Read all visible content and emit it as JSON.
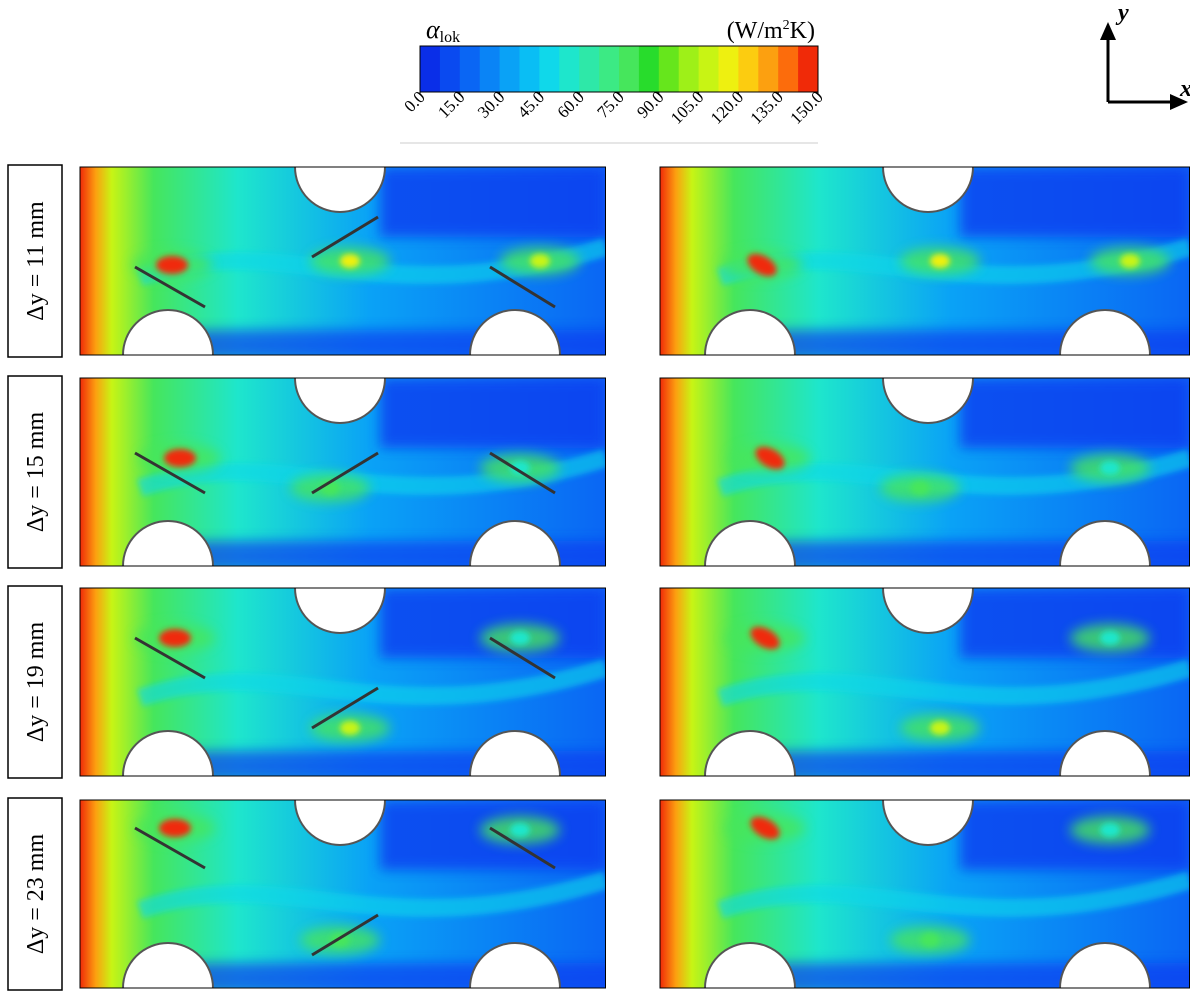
{
  "colorbar": {
    "symbol": "α",
    "symbol_sub": "lok",
    "unit_pre": "(W/m",
    "unit_sup": "2",
    "unit_post": "K)",
    "ticks": [
      {
        "value": 0,
        "label": "0.0"
      },
      {
        "value": 15,
        "label": "15.0"
      },
      {
        "value": 30,
        "label": "30.0"
      },
      {
        "value": 45,
        "label": "45.0"
      },
      {
        "value": 60,
        "label": "60.0"
      },
      {
        "value": 75,
        "label": "75.0"
      },
      {
        "value": 90,
        "label": "90.0"
      },
      {
        "value": 105,
        "label": "105.0"
      },
      {
        "value": 120,
        "label": "120.0"
      },
      {
        "value": 135,
        "label": "135.0"
      },
      {
        "value": 150,
        "label": "150.0"
      }
    ],
    "colors": [
      "#0a2ee8",
      "#0a4af0",
      "#0a66f4",
      "#0a84f6",
      "#0aa2f6",
      "#0abef4",
      "#10d8ea",
      "#1ee6cc",
      "#2ee8a8",
      "#3cea84",
      "#46e65c",
      "#28dc2c",
      "#66e61c",
      "#9ef018",
      "#c8f414",
      "#eef010",
      "#fccc10",
      "#fca010",
      "#fc6c0c",
      "#f02a08"
    ]
  },
  "axes": {
    "y": "y",
    "x": "x"
  },
  "rows": [
    {
      "label": "Δy = 11 mm"
    },
    {
      "label": "Δy = 15 mm"
    },
    {
      "label": "Δy = 19 mm"
    },
    {
      "label": "Δy = 23 mm"
    }
  ]
}
